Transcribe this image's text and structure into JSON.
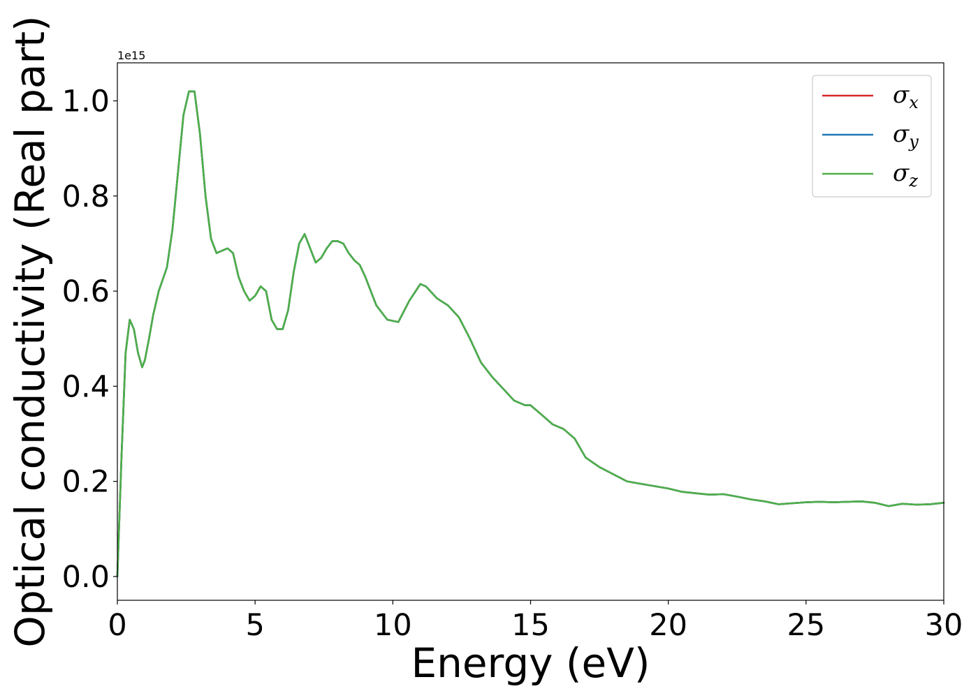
{
  "chart_data": {
    "type": "line",
    "xlabel": "Energy (eV)",
    "ylabel": "Optical conductivity (Real part)",
    "y_offset_label": "1e15",
    "xlim": [
      0,
      30
    ],
    "ylim": [
      -0.05,
      1.08
    ],
    "xticks": [
      0,
      5,
      10,
      15,
      20,
      25,
      30
    ],
    "xtick_labels": [
      "0",
      "5",
      "10",
      "15",
      "20",
      "25",
      "30"
    ],
    "yticks": [
      0.0,
      0.2,
      0.4,
      0.6,
      0.8,
      1.0
    ],
    "ytick_labels": [
      "0.0",
      "0.2",
      "0.4",
      "0.6",
      "0.8",
      "1.0"
    ],
    "grid": false,
    "legend_position": "top-right",
    "x": [
      0,
      0.15,
      0.3,
      0.45,
      0.6,
      0.75,
      0.9,
      1.0,
      1.15,
      1.3,
      1.5,
      1.8,
      2.0,
      2.2,
      2.4,
      2.6,
      2.8,
      3.0,
      3.2,
      3.4,
      3.6,
      3.8,
      4.0,
      4.2,
      4.4,
      4.6,
      4.8,
      5.0,
      5.2,
      5.4,
      5.6,
      5.8,
      6.0,
      6.2,
      6.4,
      6.6,
      6.8,
      7.0,
      7.2,
      7.4,
      7.6,
      7.8,
      8.0,
      8.2,
      8.4,
      8.6,
      8.8,
      9.0,
      9.4,
      9.8,
      10.2,
      10.6,
      11.0,
      11.2,
      11.6,
      12.0,
      12.4,
      12.8,
      13.2,
      13.6,
      14.0,
      14.4,
      14.8,
      15.0,
      15.4,
      15.8,
      16.2,
      16.6,
      17.0,
      17.5,
      18.0,
      18.5,
      19.0,
      19.5,
      20.0,
      20.5,
      21.0,
      21.5,
      22.0,
      22.5,
      23.0,
      23.5,
      24.0,
      24.5,
      25.0,
      25.5,
      26.0,
      26.5,
      27.0,
      27.5,
      28.0,
      28.5,
      29.0,
      29.5,
      30.0
    ],
    "series": [
      {
        "name": "σx",
        "label_base": "σ",
        "label_sub": "x",
        "color": "#d62728",
        "values": [
          0.0,
          0.25,
          0.47,
          0.54,
          0.52,
          0.47,
          0.44,
          0.455,
          0.5,
          0.55,
          0.6,
          0.65,
          0.73,
          0.85,
          0.97,
          1.02,
          1.02,
          0.93,
          0.8,
          0.71,
          0.68,
          0.685,
          0.69,
          0.68,
          0.63,
          0.6,
          0.58,
          0.59,
          0.61,
          0.6,
          0.54,
          0.52,
          0.52,
          0.56,
          0.64,
          0.7,
          0.72,
          0.69,
          0.66,
          0.67,
          0.69,
          0.705,
          0.705,
          0.7,
          0.68,
          0.665,
          0.655,
          0.63,
          0.57,
          0.54,
          0.535,
          0.58,
          0.615,
          0.61,
          0.585,
          0.57,
          0.545,
          0.5,
          0.45,
          0.42,
          0.395,
          0.37,
          0.36,
          0.36,
          0.34,
          0.32,
          0.31,
          0.29,
          0.25,
          0.23,
          0.215,
          0.2,
          0.195,
          0.19,
          0.185,
          0.178,
          0.175,
          0.172,
          0.173,
          0.168,
          0.162,
          0.158,
          0.152,
          0.154,
          0.156,
          0.157,
          0.156,
          0.157,
          0.158,
          0.155,
          0.148,
          0.153,
          0.151,
          0.152,
          0.155
        ]
      },
      {
        "name": "σy",
        "label_base": "σ",
        "label_sub": "y",
        "color": "#1f77b4",
        "values": [
          0.0,
          0.25,
          0.47,
          0.54,
          0.52,
          0.47,
          0.44,
          0.455,
          0.5,
          0.55,
          0.6,
          0.65,
          0.73,
          0.85,
          0.97,
          1.02,
          1.02,
          0.93,
          0.8,
          0.71,
          0.68,
          0.685,
          0.69,
          0.68,
          0.63,
          0.6,
          0.58,
          0.59,
          0.61,
          0.6,
          0.54,
          0.52,
          0.52,
          0.56,
          0.64,
          0.7,
          0.72,
          0.69,
          0.66,
          0.67,
          0.69,
          0.705,
          0.705,
          0.7,
          0.68,
          0.665,
          0.655,
          0.63,
          0.57,
          0.54,
          0.535,
          0.58,
          0.615,
          0.61,
          0.585,
          0.57,
          0.545,
          0.5,
          0.45,
          0.42,
          0.395,
          0.37,
          0.36,
          0.36,
          0.34,
          0.32,
          0.31,
          0.29,
          0.25,
          0.23,
          0.215,
          0.2,
          0.195,
          0.19,
          0.185,
          0.178,
          0.175,
          0.172,
          0.173,
          0.168,
          0.162,
          0.158,
          0.152,
          0.154,
          0.156,
          0.157,
          0.156,
          0.157,
          0.158,
          0.155,
          0.148,
          0.153,
          0.151,
          0.152,
          0.155
        ]
      },
      {
        "name": "σz",
        "label_base": "σ",
        "label_sub": "z",
        "color": "#4daf4a",
        "values": [
          0.0,
          0.25,
          0.47,
          0.54,
          0.52,
          0.47,
          0.44,
          0.455,
          0.5,
          0.55,
          0.6,
          0.65,
          0.73,
          0.85,
          0.97,
          1.02,
          1.02,
          0.93,
          0.8,
          0.71,
          0.68,
          0.685,
          0.69,
          0.68,
          0.63,
          0.6,
          0.58,
          0.59,
          0.61,
          0.6,
          0.54,
          0.52,
          0.52,
          0.56,
          0.64,
          0.7,
          0.72,
          0.69,
          0.66,
          0.67,
          0.69,
          0.705,
          0.705,
          0.7,
          0.68,
          0.665,
          0.655,
          0.63,
          0.57,
          0.54,
          0.535,
          0.58,
          0.615,
          0.61,
          0.585,
          0.57,
          0.545,
          0.5,
          0.45,
          0.42,
          0.395,
          0.37,
          0.36,
          0.36,
          0.34,
          0.32,
          0.31,
          0.29,
          0.25,
          0.23,
          0.215,
          0.2,
          0.195,
          0.19,
          0.185,
          0.178,
          0.175,
          0.172,
          0.173,
          0.168,
          0.162,
          0.158,
          0.152,
          0.154,
          0.156,
          0.157,
          0.156,
          0.157,
          0.158,
          0.155,
          0.148,
          0.153,
          0.151,
          0.152,
          0.155
        ]
      }
    ]
  }
}
